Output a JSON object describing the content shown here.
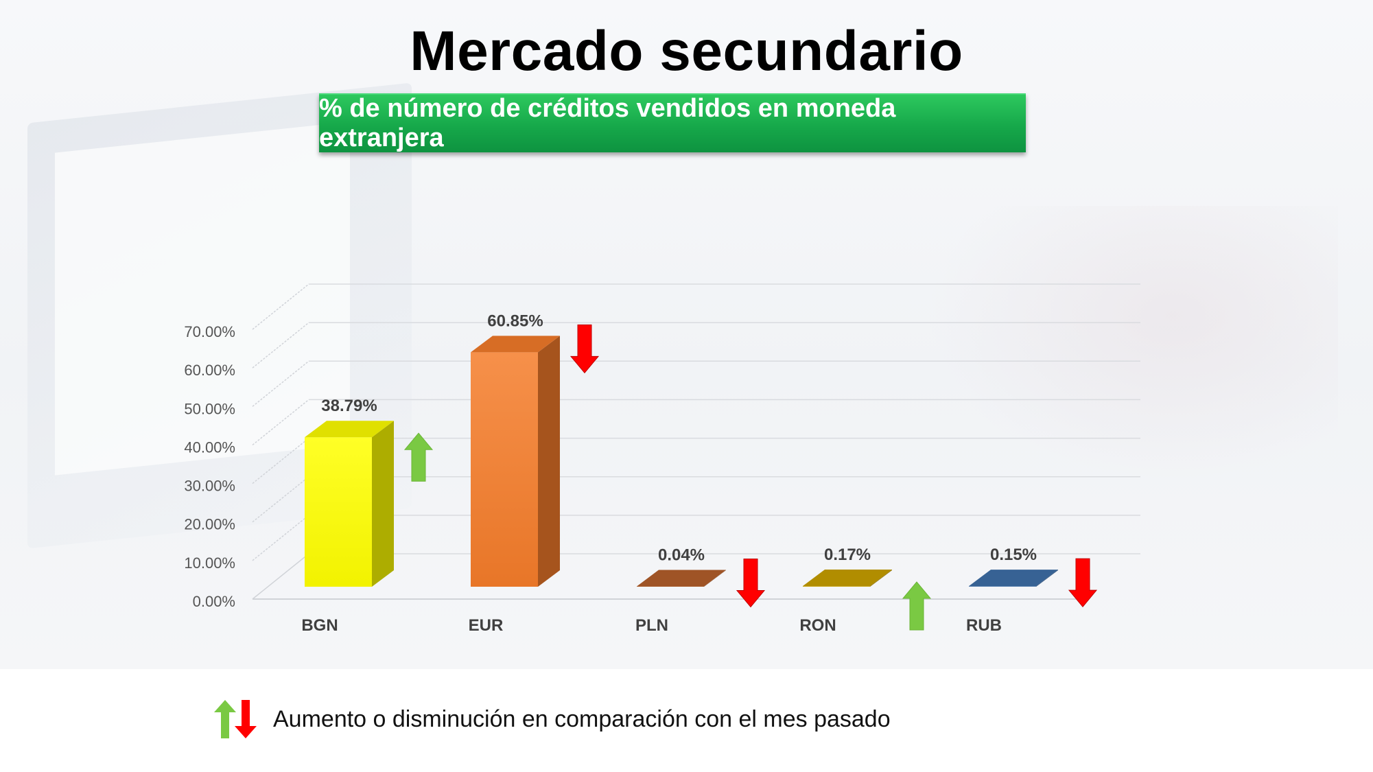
{
  "title": "Mercado secundario",
  "subtitle": "% de número de créditos vendidos en moneda extranjera",
  "legend_text": "Aumento o disminución en comparación con el mes pasado",
  "colors": {
    "increase_arrow": "#7ac943",
    "decrease_arrow": "#ff0000",
    "subtitle_bg": "#16a84a"
  },
  "chart_data": {
    "type": "bar",
    "categories": [
      "BGN",
      "EUR",
      "PLN",
      "RON",
      "RUB"
    ],
    "values": [
      38.79,
      60.85,
      0.04,
      0.17,
      0.15
    ],
    "value_labels": [
      "38.79%",
      "60.85%",
      "0.04%",
      "0.17%",
      "0.15%"
    ],
    "trend": [
      "up",
      "down",
      "down",
      "up",
      "down"
    ],
    "bar_colors": [
      "#ffff00",
      "#f47c2a",
      "#b5602b",
      "#c9a000",
      "#3f6fa8"
    ],
    "ylim": [
      0,
      70
    ],
    "yticks": [
      "0.00%",
      "10.00%",
      "20.00%",
      "30.00%",
      "40.00%",
      "50.00%",
      "60.00%",
      "70.00%"
    ],
    "grid": true,
    "title": "",
    "xlabel": "",
    "ylabel": ""
  }
}
